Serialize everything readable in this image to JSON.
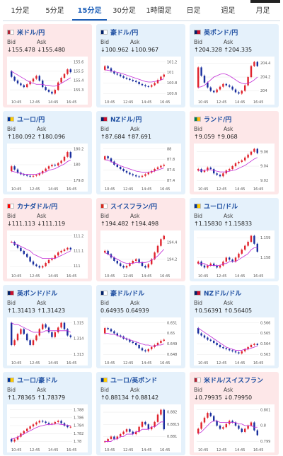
{
  "tabs": [
    "1分足",
    "5分足",
    "15分足",
    "30分足",
    "1時間足",
    "日足",
    "週足",
    "月足"
  ],
  "active_tab": "15分足",
  "labels": {
    "bid": "Bid",
    "ask": "Ask"
  },
  "colors": {
    "up_bg": "#e5f1fb",
    "down_bg": "#fde7e8",
    "candle_up": "#e0242d",
    "candle_down": "#1a2f9e",
    "ma": "#c22bd6"
  },
  "cards": [
    {
      "title": "米ドル/円",
      "trend": "down",
      "arrow": "↓",
      "bid": "155.478",
      "ask": "155.480",
      "flag_colors": [
        "#b22234",
        "#ffffff"
      ],
      "chart_data": {
        "type": "candlestick",
        "x_labels": [
          "10:45",
          "12:45",
          "14:45",
          "16:45"
        ],
        "y_labels": [
          "155.6",
          "155.5",
          "155.4",
          "155.3"
        ],
        "closes": [
          155.44,
          155.4,
          155.37,
          155.35,
          155.33,
          155.36,
          155.39,
          155.42,
          155.45,
          155.4,
          155.33,
          155.3,
          155.28,
          155.26,
          155.3,
          155.38,
          155.43,
          155.47,
          155.52,
          155.49
        ],
        "ma": [
          155.5,
          155.48,
          155.46,
          155.44,
          155.42,
          155.4,
          155.38,
          155.37,
          155.36,
          155.36,
          155.36,
          155.35,
          155.35,
          155.34,
          155.34,
          155.35,
          155.37,
          155.39,
          155.41,
          155.43
        ]
      }
    },
    {
      "title": "豪ドル/円",
      "trend": "up",
      "arrow": "↓",
      "bid": "100.962",
      "ask": "100.967",
      "flag_colors": [
        "#012169",
        "#ffffff"
      ],
      "chart_data": {
        "type": "candlestick",
        "x_labels": [
          "10:45",
          "12:45",
          "14:45",
          "16:45"
        ],
        "y_labels": [
          "101.2",
          "101",
          "100.8",
          "100.6"
        ],
        "closes": [
          101.12,
          101.08,
          101.02,
          100.98,
          100.96,
          100.93,
          100.9,
          100.88,
          100.86,
          100.84,
          100.82,
          100.78,
          100.76,
          100.74,
          100.73,
          100.76,
          100.8,
          100.86,
          100.92,
          100.96
        ],
        "ma": [
          101.05,
          101.04,
          101.03,
          101.02,
          101.0,
          100.99,
          100.97,
          100.95,
          100.93,
          100.91,
          100.89,
          100.87,
          100.85,
          100.83,
          100.82,
          100.82,
          100.83,
          100.84,
          100.86,
          100.88
        ]
      }
    },
    {
      "title": "英ポンド/円",
      "trend": "up",
      "arrow": "↑",
      "bid": "204.328",
      "ask": "204.335",
      "flag_colors": [
        "#012169",
        "#c8102e"
      ],
      "chart_data": {
        "type": "candlestick",
        "x_labels": [
          "10:45",
          "12:45",
          "14:45",
          "16:45"
        ],
        "y_labels": [
          "204.4",
          "204.2",
          "204"
        ],
        "closes": [
          204.34,
          204.22,
          204.12,
          204.05,
          204.0,
          203.98,
          204.02,
          204.06,
          204.1,
          204.08,
          204.06,
          204.02,
          203.98,
          203.96,
          204.0,
          204.08,
          204.2,
          204.36,
          204.42,
          204.36
        ],
        "ma": [
          204.05,
          204.06,
          204.08,
          204.12,
          204.16,
          204.2,
          204.22,
          204.24,
          204.25,
          204.24,
          204.22,
          204.19,
          204.16,
          204.13,
          204.11,
          204.1,
          204.11,
          204.13,
          204.16,
          204.2
        ]
      }
    },
    {
      "title": "ユーロ/円",
      "trend": "up",
      "arrow": "↑",
      "bid": "180.092",
      "ask": "180.096",
      "flag_colors": [
        "#003399",
        "#ffcc00"
      ],
      "chart_data": {
        "type": "candlestick",
        "x_labels": [
          "10:45",
          "12:45",
          "14:45",
          "16:45"
        ],
        "y_labels": [
          "180.2",
          "180",
          "179.8"
        ],
        "closes": [
          179.98,
          179.94,
          179.9,
          179.88,
          179.87,
          179.86,
          179.85,
          179.86,
          179.87,
          179.89,
          179.92,
          179.95,
          179.98,
          180.0,
          179.99,
          180.02,
          180.05,
          180.1,
          180.16,
          180.09
        ],
        "ma": [
          179.92,
          179.91,
          179.9,
          179.89,
          179.88,
          179.88,
          179.88,
          179.88,
          179.88,
          179.89,
          179.9,
          179.91,
          179.93,
          179.94,
          179.95,
          179.97,
          179.99,
          180.01,
          180.04,
          180.06
        ]
      }
    },
    {
      "title": "NZドル/円",
      "trend": "up",
      "arrow": "↑",
      "bid": "87.684",
      "ask": "87.691",
      "flag_colors": [
        "#012169",
        "#c8102e"
      ],
      "chart_data": {
        "type": "candlestick",
        "x_labels": [
          "10:45",
          "12:45",
          "14:45",
          "16:45"
        ],
        "y_labels": [
          "88",
          "87.8",
          "87.6",
          "87.4"
        ],
        "closes": [
          87.86,
          87.82,
          87.76,
          87.7,
          87.66,
          87.62,
          87.58,
          87.55,
          87.52,
          87.5,
          87.48,
          87.47,
          87.49,
          87.52,
          87.55,
          87.58,
          87.62,
          87.65,
          87.68,
          87.7
        ],
        "ma": [
          87.8,
          87.78,
          87.76,
          87.73,
          87.71,
          87.68,
          87.66,
          87.64,
          87.62,
          87.6,
          87.58,
          87.57,
          87.56,
          87.56,
          87.56,
          87.57,
          87.58,
          87.6,
          87.62,
          87.64
        ]
      }
    },
    {
      "title": "ランド/円",
      "trend": "down",
      "arrow": "↑",
      "bid": "9.059",
      "ask": "9.068",
      "flag_colors": [
        "#007a4d",
        "#ffb612"
      ],
      "chart_data": {
        "type": "candlestick",
        "x_labels": [
          "10:45",
          "12:45",
          "14:45",
          "16:45"
        ],
        "y_labels": [
          "9.06",
          "9.04",
          "9.02"
        ],
        "closes": [
          9.036,
          9.032,
          9.034,
          9.038,
          9.036,
          9.03,
          9.028,
          9.026,
          9.03,
          9.034,
          9.036,
          9.04,
          9.044,
          9.046,
          9.048,
          9.052,
          9.056,
          9.06,
          9.064,
          9.058
        ],
        "ma": [
          9.034,
          9.034,
          9.034,
          9.035,
          9.035,
          9.034,
          9.033,
          9.032,
          9.032,
          9.032,
          9.033,
          9.034,
          9.035,
          9.037,
          9.039,
          9.041,
          9.044,
          9.047,
          9.05,
          9.052
        ]
      }
    },
    {
      "title": "カナダドル/円",
      "trend": "down",
      "arrow": "↓",
      "bid": "111.113",
      "ask": "111.119",
      "flag_colors": [
        "#ff0000",
        "#ffffff"
      ],
      "chart_data": {
        "type": "candlestick",
        "x_labels": [
          "10:45",
          "12:45",
          "14:45",
          "16:45"
        ],
        "y_labels": [
          "111.2",
          "111.1",
          "111"
        ],
        "closes": [
          111.16,
          111.14,
          111.12,
          111.1,
          111.08,
          111.06,
          111.03,
          111.01,
          111.0,
          110.99,
          111.0,
          111.02,
          111.04,
          111.05,
          111.07,
          111.09,
          111.1,
          111.11,
          111.12,
          111.11
        ],
        "ma": [
          111.16,
          111.15,
          111.14,
          111.13,
          111.12,
          111.11,
          111.1,
          111.08,
          111.07,
          111.06,
          111.05,
          111.05,
          111.05,
          111.05,
          111.05,
          111.06,
          111.07,
          111.08,
          111.09,
          111.1
        ]
      }
    },
    {
      "title": "スイスフラン/円",
      "trend": "down",
      "arrow": "↑",
      "bid": "194.482",
      "ask": "194.498",
      "flag_colors": [
        "#d52b1e",
        "#ffffff"
      ],
      "chart_data": {
        "type": "candlestick",
        "x_labels": [
          "10:45",
          "12:45",
          "14:45",
          "16:45"
        ],
        "y_labels": [
          "194.4",
          "194.2"
        ],
        "closes": [
          194.3,
          194.26,
          194.22,
          194.18,
          194.15,
          194.12,
          194.1,
          194.12,
          194.15,
          194.18,
          194.2,
          194.16,
          194.12,
          194.1,
          194.14,
          194.2,
          194.28,
          194.36,
          194.44,
          194.48
        ],
        "ma": [
          194.28,
          194.26,
          194.24,
          194.22,
          194.2,
          194.18,
          194.16,
          194.15,
          194.15,
          194.15,
          194.16,
          194.16,
          194.16,
          194.16,
          194.17,
          194.19,
          194.21,
          194.24,
          194.28,
          194.32
        ]
      }
    },
    {
      "title": "ユーロ/ドル",
      "trend": "up",
      "arrow": "↑",
      "bid": "1.15830",
      "ask": "1.15833",
      "flag_colors": [
        "#003399",
        "#ffcc00"
      ],
      "chart_data": {
        "type": "candlestick",
        "x_labels": [
          "10:45",
          "12:45",
          "14:45",
          "16:45"
        ],
        "y_labels": [
          "1.159",
          "1.158"
        ],
        "closes": [
          1.1578,
          1.1576,
          1.1575,
          1.1576,
          1.1577,
          1.1576,
          1.1575,
          1.1576,
          1.1578,
          1.158,
          1.1579,
          1.1578,
          1.158,
          1.1582,
          1.1584,
          1.1586,
          1.1588,
          1.1591,
          1.1587,
          1.1583
        ],
        "ma": [
          1.1577,
          1.1577,
          1.1577,
          1.1576,
          1.1576,
          1.1576,
          1.1576,
          1.1576,
          1.1577,
          1.1577,
          1.1578,
          1.1578,
          1.1578,
          1.1579,
          1.158,
          1.1581,
          1.1582,
          1.1584,
          1.1585,
          1.1585
        ]
      }
    },
    {
      "title": "英ポンド/ドル",
      "trend": "up",
      "arrow": "↑",
      "bid": "1.31413",
      "ask": "1.31423",
      "flag_colors": [
        "#012169",
        "#c8102e"
      ],
      "chart_data": {
        "type": "candlestick",
        "x_labels": [
          "10:45",
          "12:45",
          "14:45",
          "16:45"
        ],
        "y_labels": [
          "1.315",
          "1.314",
          "1.313"
        ],
        "closes": [
          1.3136,
          1.3139,
          1.3143,
          1.3146,
          1.3143,
          1.3139,
          1.3136,
          1.3139,
          1.3142,
          1.3146,
          1.3149,
          1.3147,
          1.3144,
          1.3141,
          1.3144,
          1.3147,
          1.315,
          1.3146,
          1.3142,
          1.3141
        ],
        "ma": [
          1.315,
          1.3149,
          1.3149,
          1.3148,
          1.3147,
          1.3146,
          1.3145,
          1.3144,
          1.3144,
          1.3144,
          1.3144,
          1.3145,
          1.3145,
          1.3145,
          1.3145,
          1.3145,
          1.3145,
          1.3145,
          1.3145,
          1.3144
        ]
      }
    },
    {
      "title": "豪ドル/ドル",
      "trend": "up",
      "arrow": "",
      "bid": "0.64935",
      "ask": "0.64939",
      "flag_colors": [
        "#012169",
        "#ffffff"
      ],
      "chart_data": {
        "type": "candlestick",
        "x_labels": [
          "10:45",
          "12:45",
          "14:45",
          "16:45"
        ],
        "y_labels": [
          "0.651",
          "0.65",
          "0.649",
          "0.648"
        ],
        "closes": [
          0.6505,
          0.6504,
          0.6502,
          0.65,
          0.6498,
          0.6497,
          0.6495,
          0.6494,
          0.6492,
          0.6491,
          0.6489,
          0.6486,
          0.6484,
          0.6483,
          0.6485,
          0.6487,
          0.6489,
          0.6491,
          0.6493,
          0.6494
        ],
        "ma": [
          0.65,
          0.65,
          0.6499,
          0.6499,
          0.6498,
          0.6497,
          0.6496,
          0.6495,
          0.6494,
          0.6493,
          0.6492,
          0.6491,
          0.649,
          0.6489,
          0.6489,
          0.6488,
          0.6488,
          0.6489,
          0.6489,
          0.649
        ]
      }
    },
    {
      "title": "NZドル/ドル",
      "trend": "up",
      "arrow": "↑",
      "bid": "0.56391",
      "ask": "0.56405",
      "flag_colors": [
        "#012169",
        "#c8102e"
      ],
      "chart_data": {
        "type": "candlestick",
        "x_labels": [
          "10:45",
          "12:45",
          "14:45",
          "16:45"
        ],
        "y_labels": [
          "0.566",
          "0.565",
          "0.564",
          "0.563"
        ],
        "closes": [
          0.565,
          0.5648,
          0.5646,
          0.5644,
          0.5643,
          0.5641,
          0.5639,
          0.5637,
          0.5636,
          0.5635,
          0.5634,
          0.5633,
          0.5632,
          0.5631,
          0.5633,
          0.5635,
          0.5637,
          0.5639,
          0.564,
          0.5639
        ],
        "ma": [
          0.5655,
          0.5653,
          0.5651,
          0.5649,
          0.5647,
          0.5645,
          0.5643,
          0.5641,
          0.5639,
          0.5637,
          0.5636,
          0.5635,
          0.5634,
          0.5634,
          0.5634,
          0.5635,
          0.5635,
          0.5636,
          0.5637,
          0.5638
        ]
      }
    },
    {
      "title": "ユーロ/豪ドル",
      "trend": "up",
      "arrow": "↑",
      "bid": "1.78365",
      "ask": "1.78379",
      "flag_colors": [
        "#003399",
        "#ffcc00"
      ],
      "chart_data": {
        "type": "candlestick",
        "x_labels": [
          "10:45",
          "12:45",
          "14:45",
          "16:45"
        ],
        "y_labels": [
          "1.788",
          "1.786",
          "1.784",
          "1.782",
          "1.78"
        ],
        "closes": [
          1.78,
          1.7805,
          1.7812,
          1.782,
          1.7826,
          1.7832,
          1.7838,
          1.7843,
          1.7848,
          1.7852,
          1.785,
          1.7847,
          1.7844,
          1.7845,
          1.7849,
          1.7852,
          1.7846,
          1.784,
          1.7836,
          1.7837
        ],
        "ma": [
          1.7806,
          1.7808,
          1.7811,
          1.7815,
          1.7819,
          1.7823,
          1.7827,
          1.7831,
          1.7835,
          1.7838,
          1.784,
          1.7842,
          1.7843,
          1.7843,
          1.7844,
          1.7844,
          1.7843,
          1.7842,
          1.7841,
          1.784
        ]
      }
    },
    {
      "title": "ユーロ/英ポンド",
      "trend": "up",
      "arrow": "↑",
      "bid": "0.88134",
      "ask": "0.88142",
      "flag_colors": [
        "#003399",
        "#ffcc00"
      ],
      "chart_data": {
        "type": "candlestick",
        "x_labels": [
          "10:45",
          "12:45",
          "14:45",
          "16:45"
        ],
        "y_labels": [
          "0.882",
          "0.8815",
          "0.881"
        ],
        "closes": [
          0.8808,
          0.8809,
          0.881,
          0.8809,
          0.881,
          0.8811,
          0.8812,
          0.8813,
          0.8812,
          0.8811,
          0.8812,
          0.8814,
          0.8816,
          0.8815,
          0.8813,
          0.8814,
          0.8816,
          0.8819,
          0.8821,
          0.8813
        ],
        "ma": [
          0.8808,
          0.8808,
          0.8808,
          0.8809,
          0.8809,
          0.881,
          0.881,
          0.8811,
          0.8811,
          0.8811,
          0.8812,
          0.8812,
          0.8813,
          0.8813,
          0.8813,
          0.8814,
          0.8814,
          0.8815,
          0.8816,
          0.8816
        ]
      }
    },
    {
      "title": "米ドル/スイスフラン",
      "trend": "down",
      "arrow": "↓",
      "bid": "0.79935",
      "ask": "0.79950",
      "flag_colors": [
        "#b22234",
        "#ffffff"
      ],
      "chart_data": {
        "type": "candlestick",
        "x_labels": [
          "10:45",
          "12:45",
          "14:45",
          "16:45"
        ],
        "y_labels": [
          "0.801",
          "0.8",
          "0.799"
        ],
        "closes": [
          0.7998,
          0.8002,
          0.8005,
          0.8008,
          0.8006,
          0.8003,
          0.8,
          0.7998,
          0.7999,
          0.8001,
          0.8003,
          0.8002,
          0.8,
          0.7998,
          0.7996,
          0.7998,
          0.8,
          0.8002,
          0.7997,
          0.7994
        ],
        "ma": [
          0.7995,
          0.7996,
          0.7998,
          0.8,
          0.8002,
          0.8003,
          0.8003,
          0.8002,
          0.8002,
          0.8002,
          0.8002,
          0.8002,
          0.8002,
          0.8001,
          0.8001,
          0.8,
          0.8,
          0.8,
          0.7999,
          0.7999
        ]
      }
    }
  ]
}
